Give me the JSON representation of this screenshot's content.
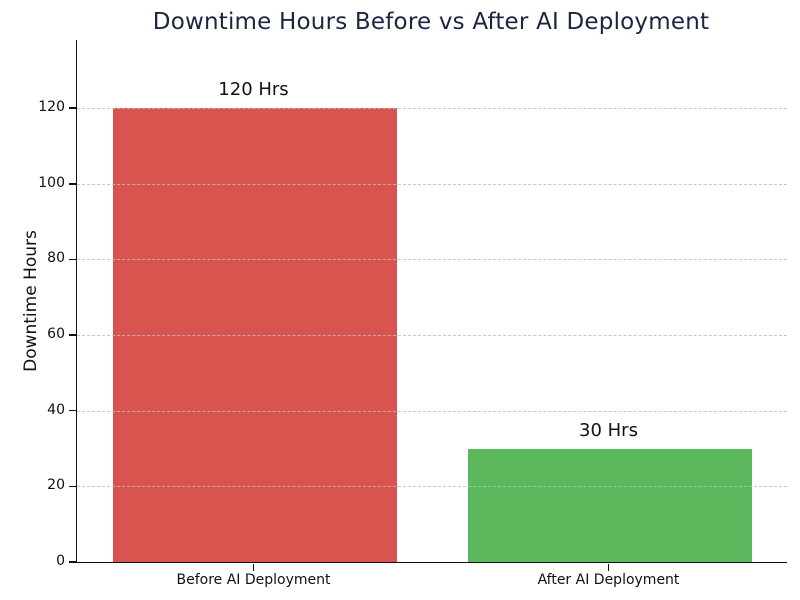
{
  "chart_data": {
    "type": "bar",
    "title": "Downtime Hours Before vs After AI Deployment",
    "categories": [
      "Before AI Deployment",
      "After AI Deployment"
    ],
    "values": [
      120,
      30
    ],
    "bar_labels": [
      "120 Hrs",
      "30 Hrs"
    ],
    "bar_colors": [
      "#d9534f",
      "#5cb85c"
    ],
    "xlabel": "",
    "ylabel": "Downtime Hours",
    "ylim": [
      0,
      138
    ],
    "yticks": [
      0,
      20,
      40,
      60,
      80,
      100,
      120
    ],
    "grid": "horizontal-dashed",
    "grid_color": "#bebebe",
    "grid_over_bars": true,
    "legend": "none",
    "title_color": "#1c2540",
    "axis_color": "#111111",
    "background_color": "#ffffff"
  }
}
